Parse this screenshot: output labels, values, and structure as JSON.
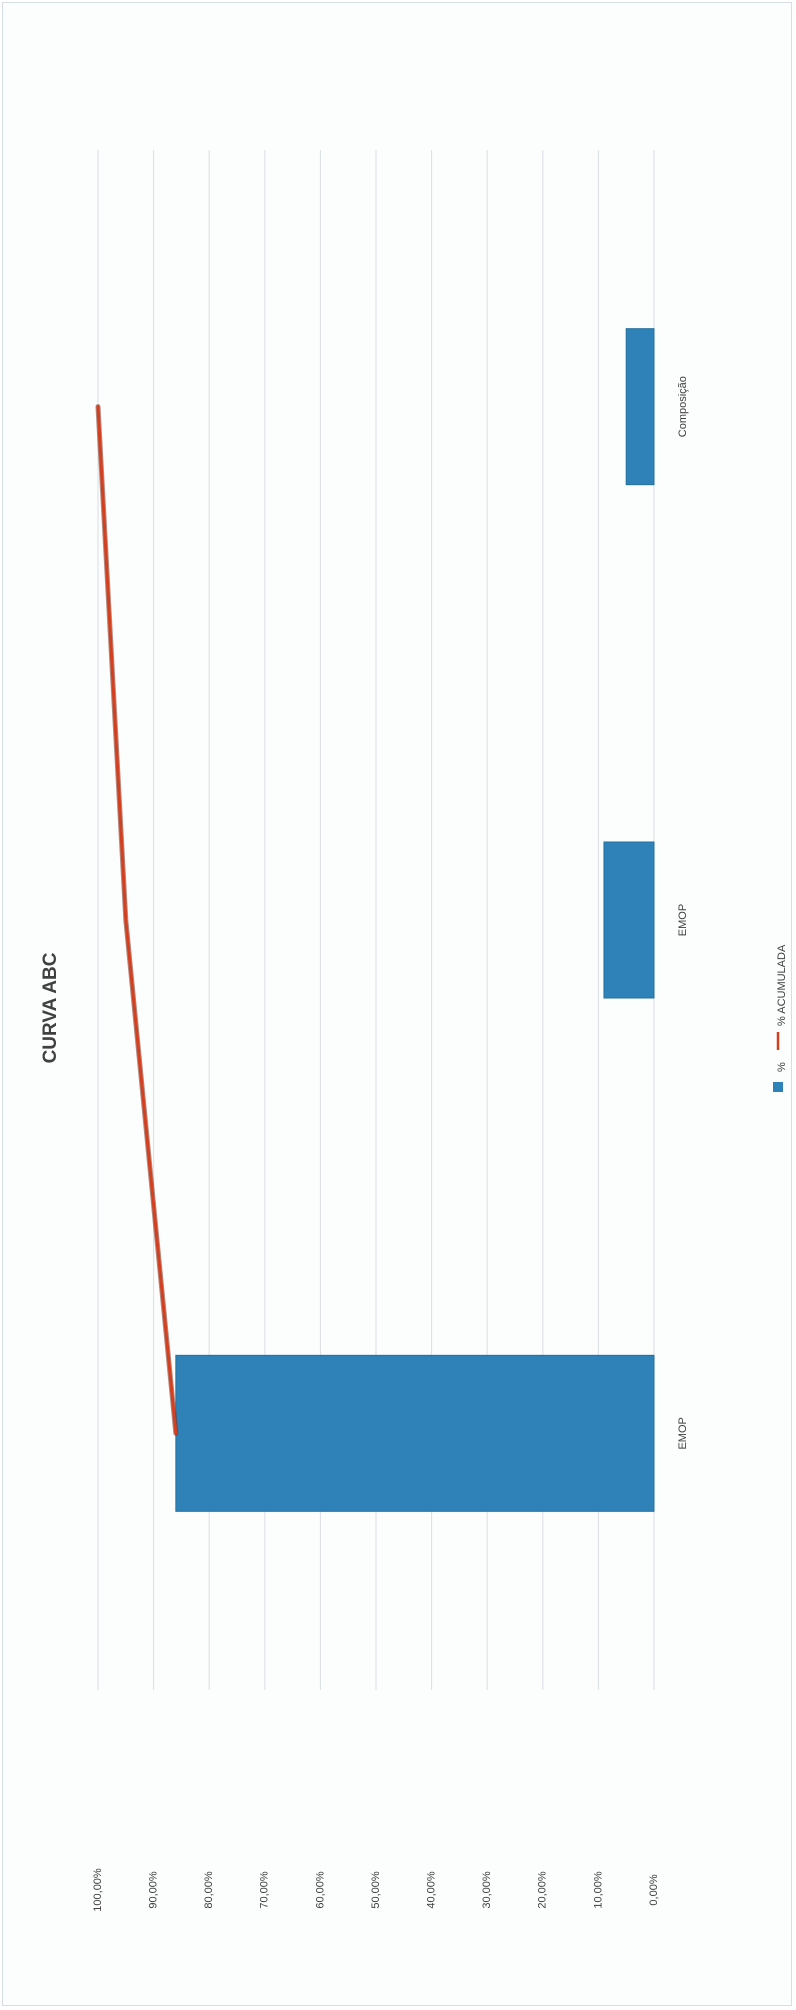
{
  "chart_data": {
    "type": "bar",
    "title": "CURVA ABC",
    "orientation": "rotated-90-ccw",
    "categories": [
      "EMOP",
      "EMOP",
      "Composição"
    ],
    "series": [
      {
        "name": "%",
        "kind": "bar",
        "color": "#2e82b8",
        "values": [
          86.0,
          9.0,
          5.0
        ]
      },
      {
        "name": "% ACUMULADA",
        "kind": "line",
        "color": "#d2401f",
        "values": [
          86.0,
          95.0,
          100.0
        ]
      }
    ],
    "y_ticks": [
      "0,00%",
      "10,00%",
      "20,00%",
      "30,00%",
      "40,00%",
      "50,00%",
      "60,00%",
      "70,00%",
      "80,00%",
      "90,00%",
      "100,00%"
    ],
    "ylim": [
      0,
      100
    ],
    "grid": true,
    "legend_position": "bottom"
  }
}
